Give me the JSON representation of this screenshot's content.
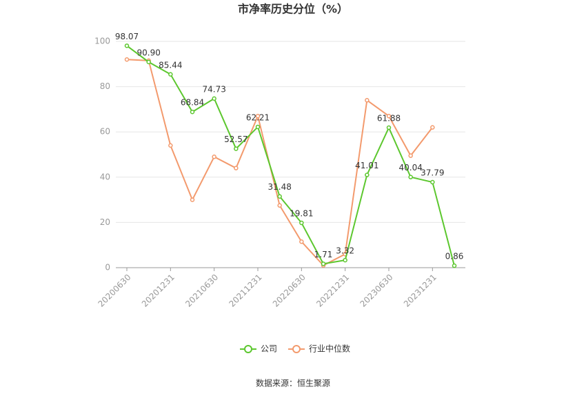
{
  "chart_data": {
    "type": "line",
    "title": "市净率历史分位（%）",
    "categories": [
      "20200630",
      null,
      "20201231",
      null,
      "20210630",
      null,
      "20211231",
      null,
      "20220630",
      null,
      "20221231",
      null,
      "20230630",
      null,
      "20231231",
      null
    ],
    "series": [
      {
        "name": "公司",
        "color": "#5cc72e",
        "values": [
          98.07,
          90.9,
          85.44,
          68.84,
          74.73,
          52.57,
          62.21,
          31.48,
          19.81,
          1.71,
          3.32,
          41.01,
          61.88,
          40.04,
          37.79,
          0.86
        ],
        "value_labels": [
          "98.07",
          "90.90",
          "85.44",
          "68.84",
          "74.73",
          "52.57",
          "62.21",
          "31.48",
          "19.81",
          "1.71",
          "3.32",
          "41.01",
          "61.88",
          "40.04",
          "37.79",
          "0.86"
        ]
      },
      {
        "name": "行业中位数",
        "color": "#f39a6d",
        "values": [
          92,
          91.5,
          54,
          30,
          49,
          44,
          67,
          27.5,
          11.5,
          1,
          6,
          74,
          67,
          49.5,
          62,
          null
        ]
      }
    ],
    "ylim": [
      0,
      100
    ],
    "yticks": [
      0,
      20,
      40,
      60,
      80,
      100
    ],
    "grid": true,
    "source": "数据来源：恒生聚源"
  }
}
